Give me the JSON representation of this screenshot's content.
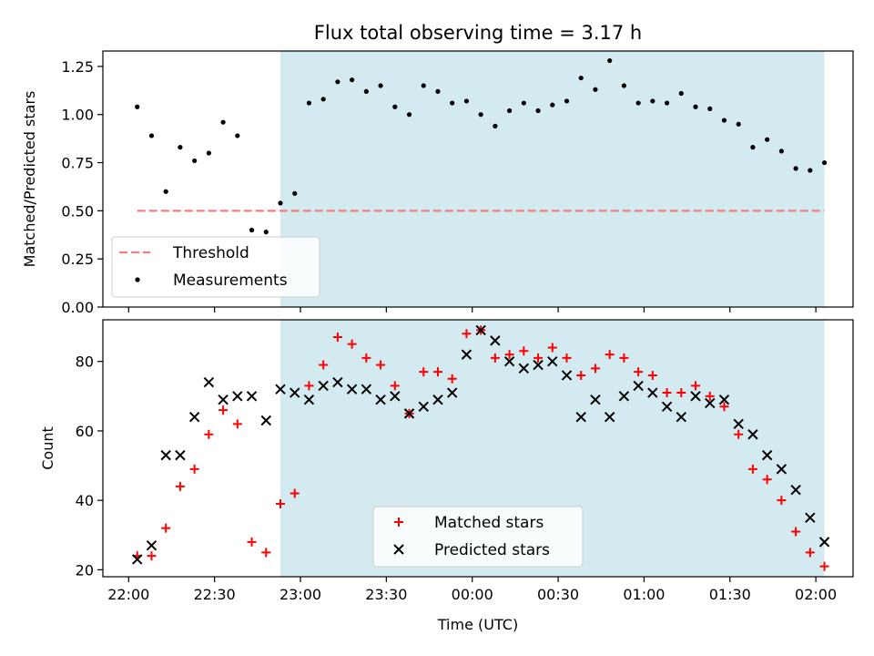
{
  "chart_data": {
    "title": "Flux total observing time = 3.17 h",
    "xlabel": "Time (UTC)",
    "x_tick_labels": [
      "22:00",
      "22:30",
      "23:00",
      "23:30",
      "00:00",
      "00:30",
      "01:00",
      "01:30",
      "02:00"
    ],
    "x_tick_values_minutes": [
      0,
      30,
      60,
      90,
      120,
      150,
      180,
      210,
      240
    ],
    "xlim_minutes": [
      -9,
      253
    ],
    "shaded_span_minutes": [
      53,
      243
    ],
    "shade_color": "#d4eaf1",
    "panels": [
      {
        "type": "scatter",
        "ylabel": "Matched/Predicted stars",
        "ylim": [
          0,
          1.33
        ],
        "yticks": [
          "0.00",
          "0.25",
          "0.50",
          "0.75",
          "1.00",
          "1.25"
        ],
        "ytick_values": [
          0,
          0.25,
          0.5,
          0.75,
          1.0,
          1.25
        ],
        "threshold": {
          "name": "Threshold",
          "value": 0.5,
          "x_range": [
            3,
            243
          ],
          "color": "#f08080"
        },
        "series": [
          {
            "name": "Measurements",
            "color": "#000000",
            "x": [
              3,
              8,
              13,
              18,
              23,
              28,
              33,
              38,
              43,
              48,
              53,
              58,
              63,
              68,
              73,
              78,
              83,
              88,
              93,
              98,
              103,
              108,
              113,
              118,
              123,
              128,
              133,
              138,
              143,
              148,
              153,
              158,
              163,
              168,
              173,
              178,
              183,
              188,
              193,
              198,
              203,
              208,
              213,
              218,
              223,
              228,
              233,
              238,
              243
            ],
            "y": [
              1.04,
              0.89,
              0.6,
              0.83,
              0.76,
              0.8,
              0.96,
              0.89,
              0.4,
              0.39,
              0.54,
              0.59,
              1.06,
              1.08,
              1.17,
              1.18,
              1.12,
              1.15,
              1.04,
              1.0,
              1.15,
              1.12,
              1.06,
              1.07,
              1.0,
              0.94,
              1.02,
              1.06,
              1.02,
              1.05,
              1.07,
              1.19,
              1.13,
              1.28,
              1.15,
              1.06,
              1.07,
              1.06,
              1.11,
              1.04,
              1.03,
              0.97,
              0.95,
              0.83,
              0.87,
              0.81,
              0.72,
              0.71,
              0.75
            ]
          }
        ],
        "legend": [
          "Threshold",
          "Measurements"
        ]
      },
      {
        "type": "scatter",
        "ylabel": "Count",
        "ylim": [
          18,
          92
        ],
        "yticks": [
          "20",
          "40",
          "60",
          "80"
        ],
        "ytick_values": [
          20,
          40,
          60,
          80
        ],
        "series": [
          {
            "name": "Matched stars",
            "color": "#ff0000",
            "marker": "plus",
            "x": [
              3,
              8,
              13,
              18,
              23,
              28,
              33,
              38,
              43,
              48,
              53,
              58,
              63,
              68,
              73,
              78,
              83,
              88,
              93,
              98,
              103,
              108,
              113,
              118,
              123,
              128,
              133,
              138,
              143,
              148,
              153,
              158,
              163,
              168,
              173,
              178,
              183,
              188,
              193,
              198,
              203,
              208,
              213,
              218,
              223,
              228,
              233,
              238,
              243
            ],
            "y": [
              24,
              24,
              32,
              44,
              49,
              59,
              66,
              62,
              28,
              25,
              39,
              42,
              73,
              79,
              87,
              85,
              81,
              79,
              73,
              65,
              77,
              77,
              75,
              88,
              89,
              81,
              82,
              83,
              81,
              84,
              81,
              76,
              78,
              82,
              81,
              77,
              76,
              71,
              71,
              73,
              70,
              67,
              59,
              49,
              46,
              40,
              31,
              25,
              21
            ]
          },
          {
            "name": "Predicted stars",
            "color": "#000000",
            "marker": "x",
            "x": [
              3,
              8,
              13,
              18,
              23,
              28,
              33,
              38,
              43,
              48,
              53,
              58,
              63,
              68,
              73,
              78,
              83,
              88,
              93,
              98,
              103,
              108,
              113,
              118,
              123,
              128,
              133,
              138,
              143,
              148,
              153,
              158,
              163,
              168,
              173,
              178,
              183,
              188,
              193,
              198,
              203,
              208,
              213,
              218,
              223,
              228,
              233,
              238,
              243
            ],
            "y": [
              23,
              27,
              53,
              53,
              64,
              74,
              69,
              70,
              70,
              63,
              72,
              71,
              69,
              73,
              74,
              72,
              72,
              69,
              70,
              65,
              67,
              69,
              71,
              82,
              89,
              86,
              80,
              78,
              79,
              80,
              76,
              64,
              69,
              64,
              70,
              73,
              71,
              67,
              64,
              70,
              68,
              69,
              62,
              59,
              53,
              49,
              43,
              35,
              28
            ]
          }
        ],
        "legend": [
          "Matched stars",
          "Predicted stars"
        ]
      }
    ]
  }
}
